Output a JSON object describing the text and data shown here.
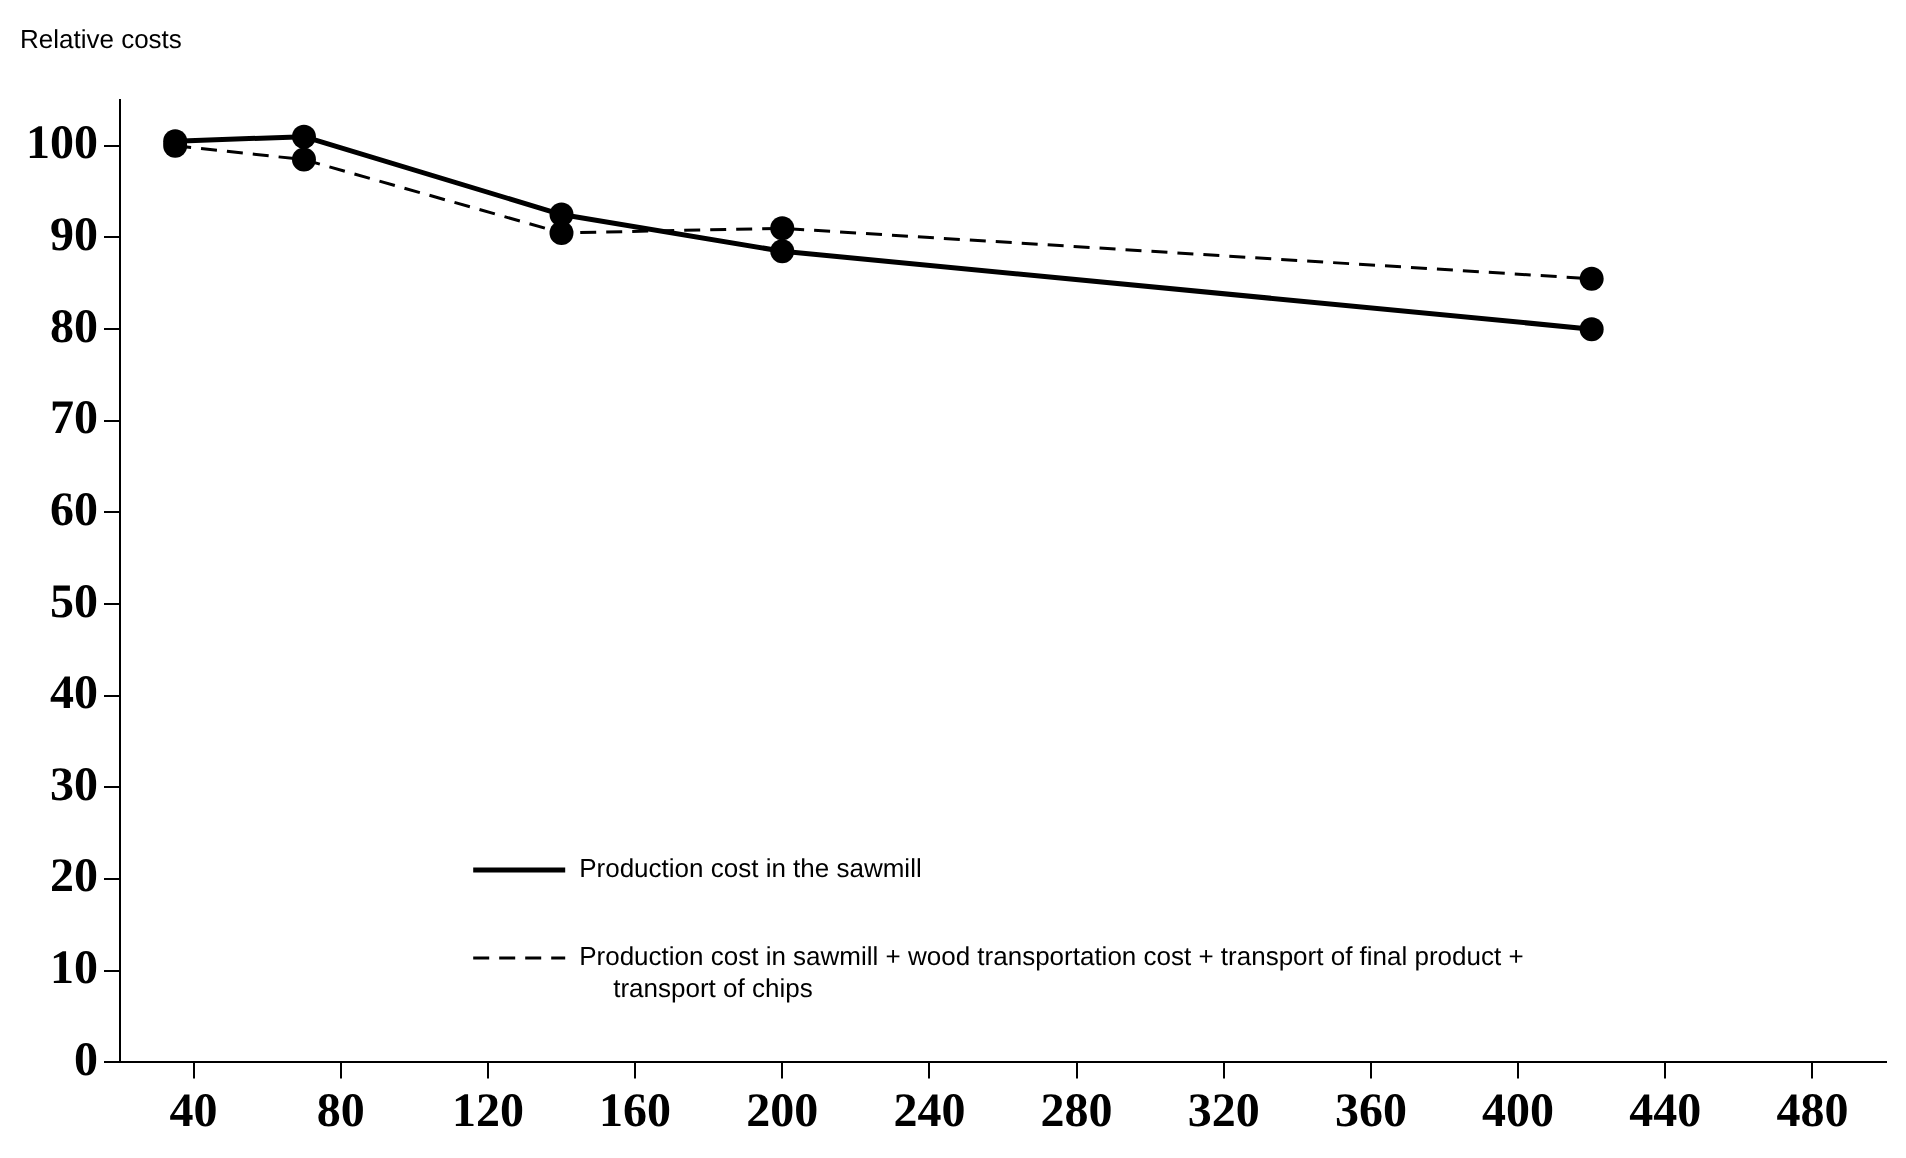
{
  "chart_data": {
    "type": "line",
    "ylabel": "Relative costs",
    "x": [
      35,
      70,
      140,
      200,
      420
    ],
    "series": [
      {
        "name": "Production cost in the sawmill",
        "color": "#000000",
        "line_style": "solid",
        "values": [
          100.5,
          101,
          92.5,
          88.5,
          80
        ]
      },
      {
        "name": "Production cost in sawmill + wood transportation cost + transport of final product + transport of chips",
        "color": "#000000",
        "line_style": "dashed",
        "values": [
          100,
          98.5,
          90.5,
          91,
          85.5
        ]
      }
    ],
    "xlim": [
      20,
      500
    ],
    "xticks": [
      40,
      80,
      120,
      160,
      200,
      240,
      280,
      320,
      360,
      400,
      440,
      480
    ],
    "ylim": [
      0,
      105
    ],
    "yticks": [
      0,
      10,
      20,
      30,
      40,
      50,
      60,
      70,
      80,
      90,
      100
    ],
    "grid": false,
    "legend": "bottom",
    "marker": "circle"
  }
}
